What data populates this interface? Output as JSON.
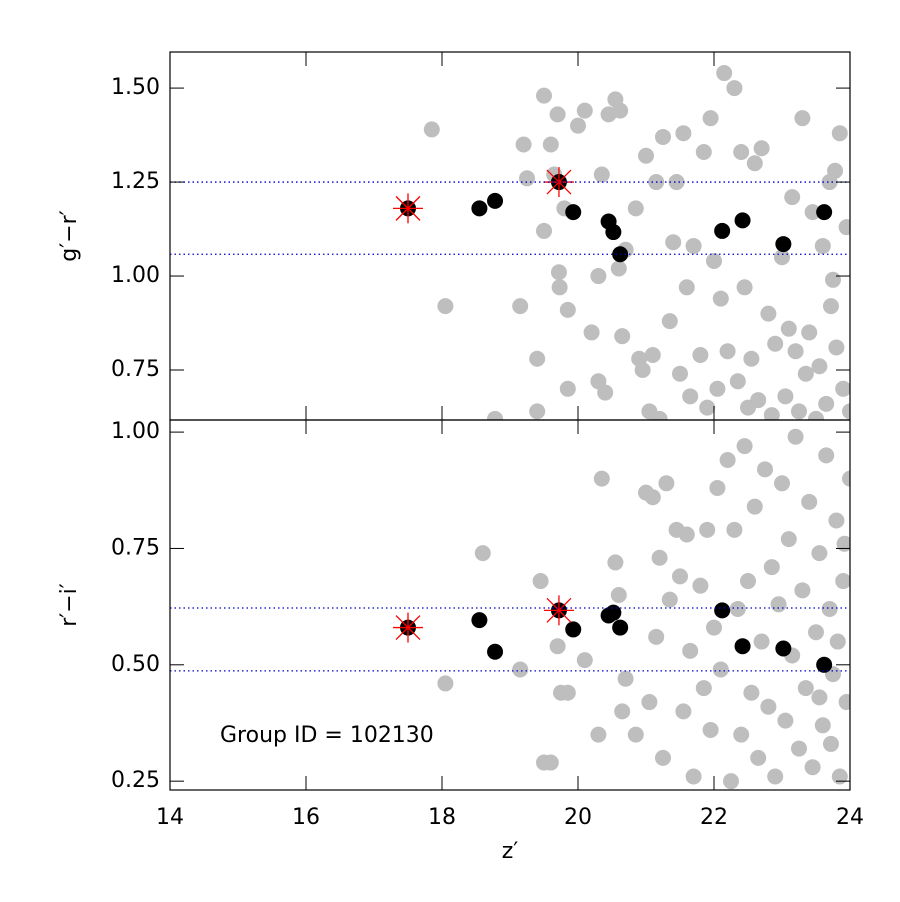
{
  "chart_data": [
    {
      "type": "scatter",
      "ylabel": "g′−r′",
      "xlim": [
        14,
        24
      ],
      "ylim": [
        0.617,
        1.596
      ],
      "yticks": [
        {
          "value": 1.5,
          "label": "1.50"
        },
        1.25,
        {
          "value": 1.0,
          "label": "1.00"
        },
        0.75
      ],
      "hlines": [
        1.25,
        1.058
      ],
      "hline_color": "#0000cc",
      "series": [
        {
          "color": "#bebebe",
          "marker": "circle",
          "x": [
            17.85,
            18.05,
            18.78,
            19.15,
            19.2,
            19.25,
            19.4,
            19.4,
            19.5,
            19.5,
            19.6,
            19.65,
            19.7,
            19.72,
            19.73,
            19.8,
            19.85,
            19.85,
            20.0,
            20.1,
            20.2,
            20.3,
            20.3,
            20.35,
            20.4,
            20.45,
            20.55,
            20.6,
            20.62,
            20.65,
            20.7,
            20.85,
            20.9,
            20.95,
            21.0,
            21.05,
            21.1,
            21.15,
            21.2,
            21.25,
            21.35,
            21.4,
            21.45,
            21.5,
            21.55,
            21.6,
            21.65,
            21.7,
            21.8,
            21.85,
            21.9,
            21.95,
            22.0,
            22.05,
            22.1,
            22.2,
            22.15,
            22.3,
            22.35,
            22.4,
            22.45,
            22.5,
            22.55,
            22.6,
            22.65,
            22.7,
            22.8,
            22.85,
            22.9,
            23.0,
            23.05,
            23.1,
            23.15,
            23.2,
            23.25,
            23.3,
            23.35,
            23.4,
            23.45,
            23.5,
            23.55,
            23.6,
            23.65,
            23.7,
            23.75,
            23.8,
            23.85,
            23.9,
            23.95,
            24.0,
            23.78,
            23.72
          ],
          "values": [
            1.39,
            0.92,
            0.62,
            0.92,
            1.35,
            1.26,
            0.78,
            0.64,
            1.48,
            1.12,
            1.35,
            1.27,
            1.43,
            1.01,
            0.97,
            1.18,
            0.7,
            0.91,
            1.4,
            1.44,
            0.85,
            1.0,
            0.72,
            1.27,
            0.69,
            1.43,
            1.47,
            1.02,
            1.44,
            0.84,
            1.07,
            1.18,
            0.78,
            0.75,
            1.32,
            0.64,
            0.79,
            1.25,
            0.62,
            1.37,
            0.88,
            1.09,
            1.25,
            0.74,
            1.38,
            0.97,
            0.68,
            1.08,
            0.79,
            1.33,
            0.65,
            1.42,
            1.04,
            0.7,
            0.94,
            0.8,
            1.54,
            1.5,
            0.72,
            1.33,
            0.97,
            0.65,
            0.78,
            1.3,
            0.67,
            1.34,
            0.9,
            0.63,
            0.82,
            1.05,
            0.68,
            0.86,
            1.21,
            0.8,
            0.64,
            1.42,
            0.74,
            0.85,
            1.17,
            0.62,
            0.76,
            1.08,
            0.66,
            1.25,
            0.99,
            0.81,
            1.38,
            0.7,
            1.13,
            0.64,
            1.28,
            0.92
          ]
        },
        {
          "color": "#000000",
          "marker": "circle",
          "x": [
            17.5,
            18.55,
            18.78,
            19.72,
            19.93,
            20.45,
            20.52,
            20.62,
            22.12,
            22.42,
            23.02,
            23.62
          ],
          "values": [
            1.18,
            1.18,
            1.2,
            1.25,
            1.17,
            1.145,
            1.117,
            1.058,
            1.12,
            1.148,
            1.085,
            1.17
          ]
        },
        {
          "color": "#ff0000",
          "marker": "cross",
          "x": [
            17.5,
            19.72
          ],
          "values": [
            1.18,
            1.25
          ]
        }
      ]
    },
    {
      "type": "scatter",
      "ylabel": "r′−i′",
      "xlabel": "z′",
      "annotation": "Group ID = 102130",
      "xlim": [
        14,
        24
      ],
      "ylim": [
        0.231,
        1.026
      ],
      "xticks": [
        14,
        16,
        18,
        20,
        22,
        24
      ],
      "yticks": [
        {
          "value": 1.0,
          "label": "1.00"
        },
        0.75,
        {
          "value": 0.5,
          "label": "0.50"
        },
        0.25
      ],
      "hlines": [
        0.622,
        0.487
      ],
      "hline_color": "#0000cc",
      "series": [
        {
          "color": "#bebebe",
          "marker": "circle",
          "x": [
            18.05,
            18.6,
            19.15,
            19.45,
            19.5,
            19.6,
            19.7,
            19.75,
            19.85,
            20.1,
            20.3,
            20.35,
            20.55,
            20.6,
            20.65,
            20.7,
            20.85,
            21.0,
            21.05,
            21.1,
            21.15,
            21.2,
            21.25,
            21.3,
            21.35,
            21.45,
            21.5,
            21.55,
            21.6,
            21.65,
            21.7,
            21.8,
            21.85,
            21.9,
            21.95,
            22.0,
            22.05,
            22.1,
            22.2,
            22.25,
            22.3,
            22.35,
            22.4,
            22.45,
            22.5,
            22.55,
            22.6,
            22.65,
            22.7,
            22.75,
            22.8,
            22.85,
            22.9,
            22.95,
            23.0,
            23.05,
            23.1,
            23.15,
            23.2,
            23.25,
            23.3,
            23.35,
            23.4,
            23.45,
            23.5,
            23.55,
            23.6,
            23.65,
            23.7,
            23.75,
            23.8,
            23.85,
            23.9,
            23.95,
            24.0,
            23.82,
            23.72,
            23.92,
            23.55
          ],
          "values": [
            0.46,
            0.74,
            0.49,
            0.68,
            0.29,
            0.29,
            0.54,
            0.44,
            0.44,
            0.51,
            0.35,
            0.9,
            0.72,
            0.65,
            0.4,
            0.47,
            0.35,
            0.87,
            0.42,
            0.86,
            0.56,
            0.73,
            0.3,
            0.89,
            0.64,
            0.79,
            0.69,
            0.4,
            0.78,
            0.53,
            0.26,
            0.67,
            0.45,
            0.79,
            0.36,
            0.58,
            0.88,
            0.49,
            0.94,
            0.25,
            0.79,
            0.62,
            0.35,
            0.97,
            0.68,
            0.44,
            0.84,
            0.3,
            0.55,
            0.92,
            0.41,
            0.71,
            0.26,
            0.63,
            0.89,
            0.38,
            0.77,
            0.52,
            0.99,
            0.32,
            0.66,
            0.45,
            0.85,
            0.28,
            0.57,
            0.74,
            0.37,
            0.95,
            0.62,
            0.48,
            0.81,
            0.26,
            0.68,
            0.42,
            0.9,
            0.55,
            0.33,
            0.76,
            0.43
          ]
        },
        {
          "color": "#000000",
          "marker": "circle",
          "x": [
            17.5,
            18.55,
            18.78,
            19.72,
            19.93,
            20.45,
            20.52,
            20.62,
            22.12,
            22.42,
            23.02,
            23.62
          ],
          "values": [
            0.58,
            0.596,
            0.528,
            0.617,
            0.576,
            0.606,
            0.612,
            0.58,
            0.617,
            0.54,
            0.535,
            0.5
          ]
        },
        {
          "color": "#ff0000",
          "marker": "cross",
          "x": [
            17.5,
            19.72
          ],
          "values": [
            0.58,
            0.617
          ]
        }
      ]
    }
  ]
}
